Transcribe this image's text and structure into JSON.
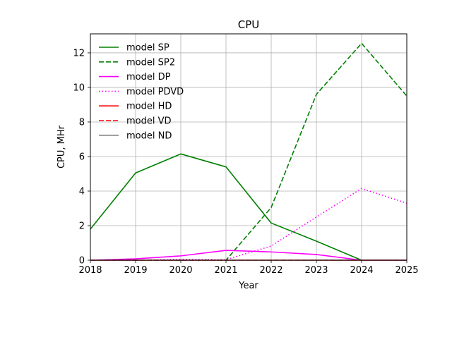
{
  "chart_data": {
    "type": "line",
    "title": "CPU",
    "xlabel": "Year",
    "ylabel": "CPU, MHr",
    "x": [
      2018,
      2019,
      2020,
      2021,
      2022,
      2023,
      2024,
      2025
    ],
    "xlim": [
      2018,
      2025
    ],
    "ylim": [
      0,
      13.1
    ],
    "xticks": [
      "2018",
      "2019",
      "2020",
      "2021",
      "2022",
      "2023",
      "2024",
      "2025"
    ],
    "yticks": [
      0,
      2,
      4,
      6,
      8,
      10,
      12
    ],
    "grid": true,
    "legend_position": "top-left",
    "series": [
      {
        "name": "model SP",
        "color": "#008000",
        "dash": "solid",
        "values": [
          1.8,
          5.05,
          6.15,
          5.4,
          2.15,
          1.1,
          0.0,
          0.0
        ]
      },
      {
        "name": "model SP2",
        "color": "#008000",
        "dash": "dashed",
        "values": [
          0.0,
          0.0,
          0.0,
          0.0,
          3.05,
          9.6,
          12.55,
          9.5
        ]
      },
      {
        "name": "model DP",
        "color": "#ff00ff",
        "dash": "solid",
        "values": [
          0.0,
          0.08,
          0.25,
          0.57,
          0.48,
          0.33,
          0.0,
          0.0
        ]
      },
      {
        "name": "model PDVD",
        "color": "#ff00ff",
        "dash": "dotted",
        "values": [
          0.0,
          0.0,
          0.05,
          0.03,
          0.82,
          2.5,
          4.15,
          3.3
        ]
      },
      {
        "name": "model HD",
        "color": "#ff0000",
        "dash": "solid",
        "values": [
          0,
          0,
          0,
          0,
          0,
          0,
          0,
          0
        ]
      },
      {
        "name": "model VD",
        "color": "#ff0000",
        "dash": "dashed",
        "values": [
          0,
          0,
          0,
          0,
          0,
          0,
          0,
          0
        ]
      },
      {
        "name": "model ND",
        "color": "#808080",
        "dash": "solid",
        "values": [
          0,
          0,
          0,
          0,
          0,
          0,
          0,
          0
        ]
      }
    ]
  }
}
